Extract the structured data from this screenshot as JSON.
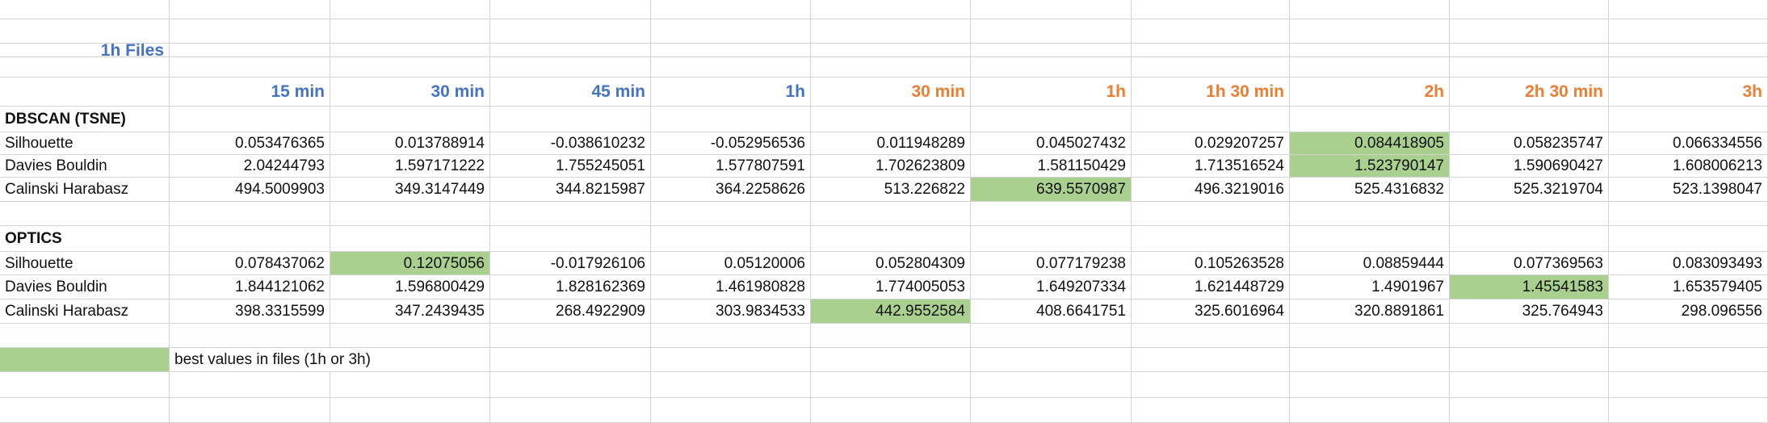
{
  "colors": {
    "blue_header": "#4472c4",
    "orange_header": "#ed7d31",
    "highlight": "#a9d08e",
    "grid": "#d4d4d4"
  },
  "title": "1h Files",
  "headers": [
    {
      "label": "15 min",
      "group": "blue"
    },
    {
      "label": "30 min",
      "group": "blue"
    },
    {
      "label": "45 min",
      "group": "blue"
    },
    {
      "label": "1h",
      "group": "blue"
    },
    {
      "label": "30 min",
      "group": "orange"
    },
    {
      "label": "1h",
      "group": "orange"
    },
    {
      "label": "1h 30 min",
      "group": "orange"
    },
    {
      "label": "2h",
      "group": "orange"
    },
    {
      "label": "2h 30 min",
      "group": "orange"
    },
    {
      "label": "3h",
      "group": "orange"
    }
  ],
  "sections": [
    {
      "name": "DBSCAN (TSNE)",
      "rows": [
        {
          "metric": "Silhouette",
          "values": [
            "0.053476365",
            "0.013788914",
            "-0.038610232",
            "-0.052956536",
            "0.011948289",
            "0.045027432",
            "0.029207257",
            "0.084418905",
            "0.058235747",
            "0.066334556"
          ],
          "best": [
            7
          ]
        },
        {
          "metric": "Davies Bouldin",
          "values": [
            "2.04244793",
            "1.597171222",
            "1.755245051",
            "1.577807591",
            "1.702623809",
            "1.581150429",
            "1.713516524",
            "1.523790147",
            "1.590690427",
            "1.608006213"
          ],
          "best": [
            7
          ]
        },
        {
          "metric": "Calinski Harabasz",
          "values": [
            "494.5009903",
            "349.3147449",
            "344.8215987",
            "364.2258626",
            "513.226822",
            "639.5570987",
            "496.3219016",
            "525.4316832",
            "525.3219704",
            "523.1398047"
          ],
          "best": [
            5
          ]
        }
      ]
    },
    {
      "name": "OPTICS",
      "rows": [
        {
          "metric": "Silhouette",
          "values": [
            "0.078437062",
            "0.12075056",
            "-0.017926106",
            "0.05120006",
            "0.052804309",
            "0.077179238",
            "0.105263528",
            "0.08859444",
            "0.077369563",
            "0.083093493"
          ],
          "best": [
            1
          ]
        },
        {
          "metric": "Davies Bouldin",
          "values": [
            "1.844121062",
            "1.596800429",
            "1.828162369",
            "1.461980828",
            "1.774005053",
            "1.649207334",
            "1.621448729",
            "1.4901967",
            "1.45541583",
            "1.653579405"
          ],
          "best": [
            8
          ]
        },
        {
          "metric": "Calinski Harabasz",
          "values": [
            "398.3315599",
            "347.2439435",
            "268.4922909",
            "303.9834533",
            "442.9552584",
            "408.6641751",
            "325.6016964",
            "320.8891861",
            "325.764943",
            "298.096556"
          ],
          "best": [
            4
          ]
        }
      ]
    }
  ],
  "legend": {
    "text": "best values in files (1h or 3h)"
  }
}
